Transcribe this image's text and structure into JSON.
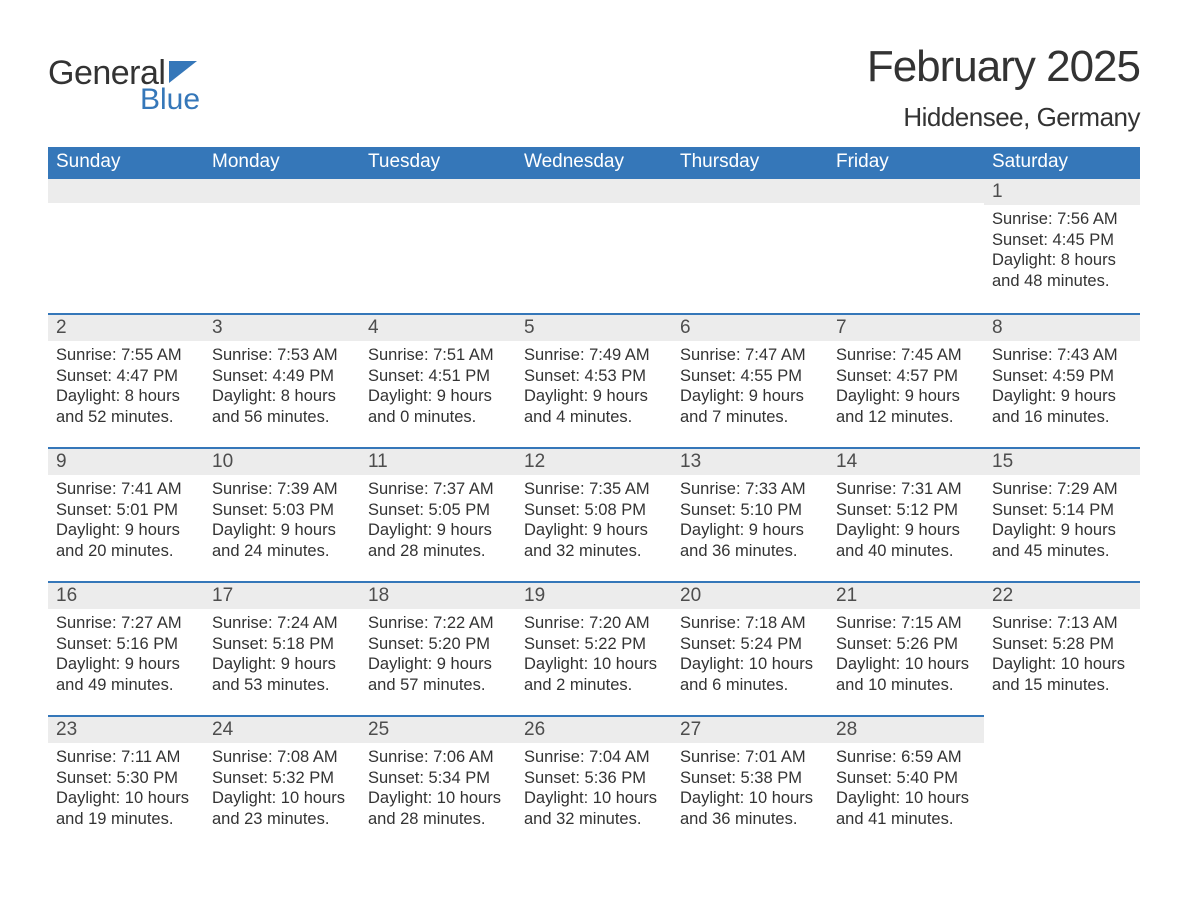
{
  "logo": {
    "word1": "General",
    "word2": "Blue"
  },
  "title": "February 2025",
  "location": "Hiddensee, Germany",
  "colors": {
    "header_bg": "#3577b9",
    "header_text": "#ffffff",
    "daybar_bg": "#ececec",
    "daybar_border": "#3577b9",
    "body_text": "#333333"
  },
  "typography": {
    "title_fontsize": 44,
    "location_fontsize": 26,
    "header_fontsize": 19,
    "daynum_fontsize": 19,
    "body_fontsize": 16.5
  },
  "layout": {
    "columns": 7,
    "rows": 5,
    "leading_blank_cells": 6
  },
  "weekdays": [
    "Sunday",
    "Monday",
    "Tuesday",
    "Wednesday",
    "Thursday",
    "Friday",
    "Saturday"
  ],
  "days": [
    {
      "n": 1,
      "sunrise": "7:56 AM",
      "sunset": "4:45 PM",
      "daylight": "8 hours and 48 minutes."
    },
    {
      "n": 2,
      "sunrise": "7:55 AM",
      "sunset": "4:47 PM",
      "daylight": "8 hours and 52 minutes."
    },
    {
      "n": 3,
      "sunrise": "7:53 AM",
      "sunset": "4:49 PM",
      "daylight": "8 hours and 56 minutes."
    },
    {
      "n": 4,
      "sunrise": "7:51 AM",
      "sunset": "4:51 PM",
      "daylight": "9 hours and 0 minutes."
    },
    {
      "n": 5,
      "sunrise": "7:49 AM",
      "sunset": "4:53 PM",
      "daylight": "9 hours and 4 minutes."
    },
    {
      "n": 6,
      "sunrise": "7:47 AM",
      "sunset": "4:55 PM",
      "daylight": "9 hours and 7 minutes."
    },
    {
      "n": 7,
      "sunrise": "7:45 AM",
      "sunset": "4:57 PM",
      "daylight": "9 hours and 12 minutes."
    },
    {
      "n": 8,
      "sunrise": "7:43 AM",
      "sunset": "4:59 PM",
      "daylight": "9 hours and 16 minutes."
    },
    {
      "n": 9,
      "sunrise": "7:41 AM",
      "sunset": "5:01 PM",
      "daylight": "9 hours and 20 minutes."
    },
    {
      "n": 10,
      "sunrise": "7:39 AM",
      "sunset": "5:03 PM",
      "daylight": "9 hours and 24 minutes."
    },
    {
      "n": 11,
      "sunrise": "7:37 AM",
      "sunset": "5:05 PM",
      "daylight": "9 hours and 28 minutes."
    },
    {
      "n": 12,
      "sunrise": "7:35 AM",
      "sunset": "5:08 PM",
      "daylight": "9 hours and 32 minutes."
    },
    {
      "n": 13,
      "sunrise": "7:33 AM",
      "sunset": "5:10 PM",
      "daylight": "9 hours and 36 minutes."
    },
    {
      "n": 14,
      "sunrise": "7:31 AM",
      "sunset": "5:12 PM",
      "daylight": "9 hours and 40 minutes."
    },
    {
      "n": 15,
      "sunrise": "7:29 AM",
      "sunset": "5:14 PM",
      "daylight": "9 hours and 45 minutes."
    },
    {
      "n": 16,
      "sunrise": "7:27 AM",
      "sunset": "5:16 PM",
      "daylight": "9 hours and 49 minutes."
    },
    {
      "n": 17,
      "sunrise": "7:24 AM",
      "sunset": "5:18 PM",
      "daylight": "9 hours and 53 minutes."
    },
    {
      "n": 18,
      "sunrise": "7:22 AM",
      "sunset": "5:20 PM",
      "daylight": "9 hours and 57 minutes."
    },
    {
      "n": 19,
      "sunrise": "7:20 AM",
      "sunset": "5:22 PM",
      "daylight": "10 hours and 2 minutes."
    },
    {
      "n": 20,
      "sunrise": "7:18 AM",
      "sunset": "5:24 PM",
      "daylight": "10 hours and 6 minutes."
    },
    {
      "n": 21,
      "sunrise": "7:15 AM",
      "sunset": "5:26 PM",
      "daylight": "10 hours and 10 minutes."
    },
    {
      "n": 22,
      "sunrise": "7:13 AM",
      "sunset": "5:28 PM",
      "daylight": "10 hours and 15 minutes."
    },
    {
      "n": 23,
      "sunrise": "7:11 AM",
      "sunset": "5:30 PM",
      "daylight": "10 hours and 19 minutes."
    },
    {
      "n": 24,
      "sunrise": "7:08 AM",
      "sunset": "5:32 PM",
      "daylight": "10 hours and 23 minutes."
    },
    {
      "n": 25,
      "sunrise": "7:06 AM",
      "sunset": "5:34 PM",
      "daylight": "10 hours and 28 minutes."
    },
    {
      "n": 26,
      "sunrise": "7:04 AM",
      "sunset": "5:36 PM",
      "daylight": "10 hours and 32 minutes."
    },
    {
      "n": 27,
      "sunrise": "7:01 AM",
      "sunset": "5:38 PM",
      "daylight": "10 hours and 36 minutes."
    },
    {
      "n": 28,
      "sunrise": "6:59 AM",
      "sunset": "5:40 PM",
      "daylight": "10 hours and 41 minutes."
    }
  ],
  "labels": {
    "sunrise_prefix": "Sunrise: ",
    "sunset_prefix": "Sunset: ",
    "daylight_prefix": "Daylight: "
  }
}
